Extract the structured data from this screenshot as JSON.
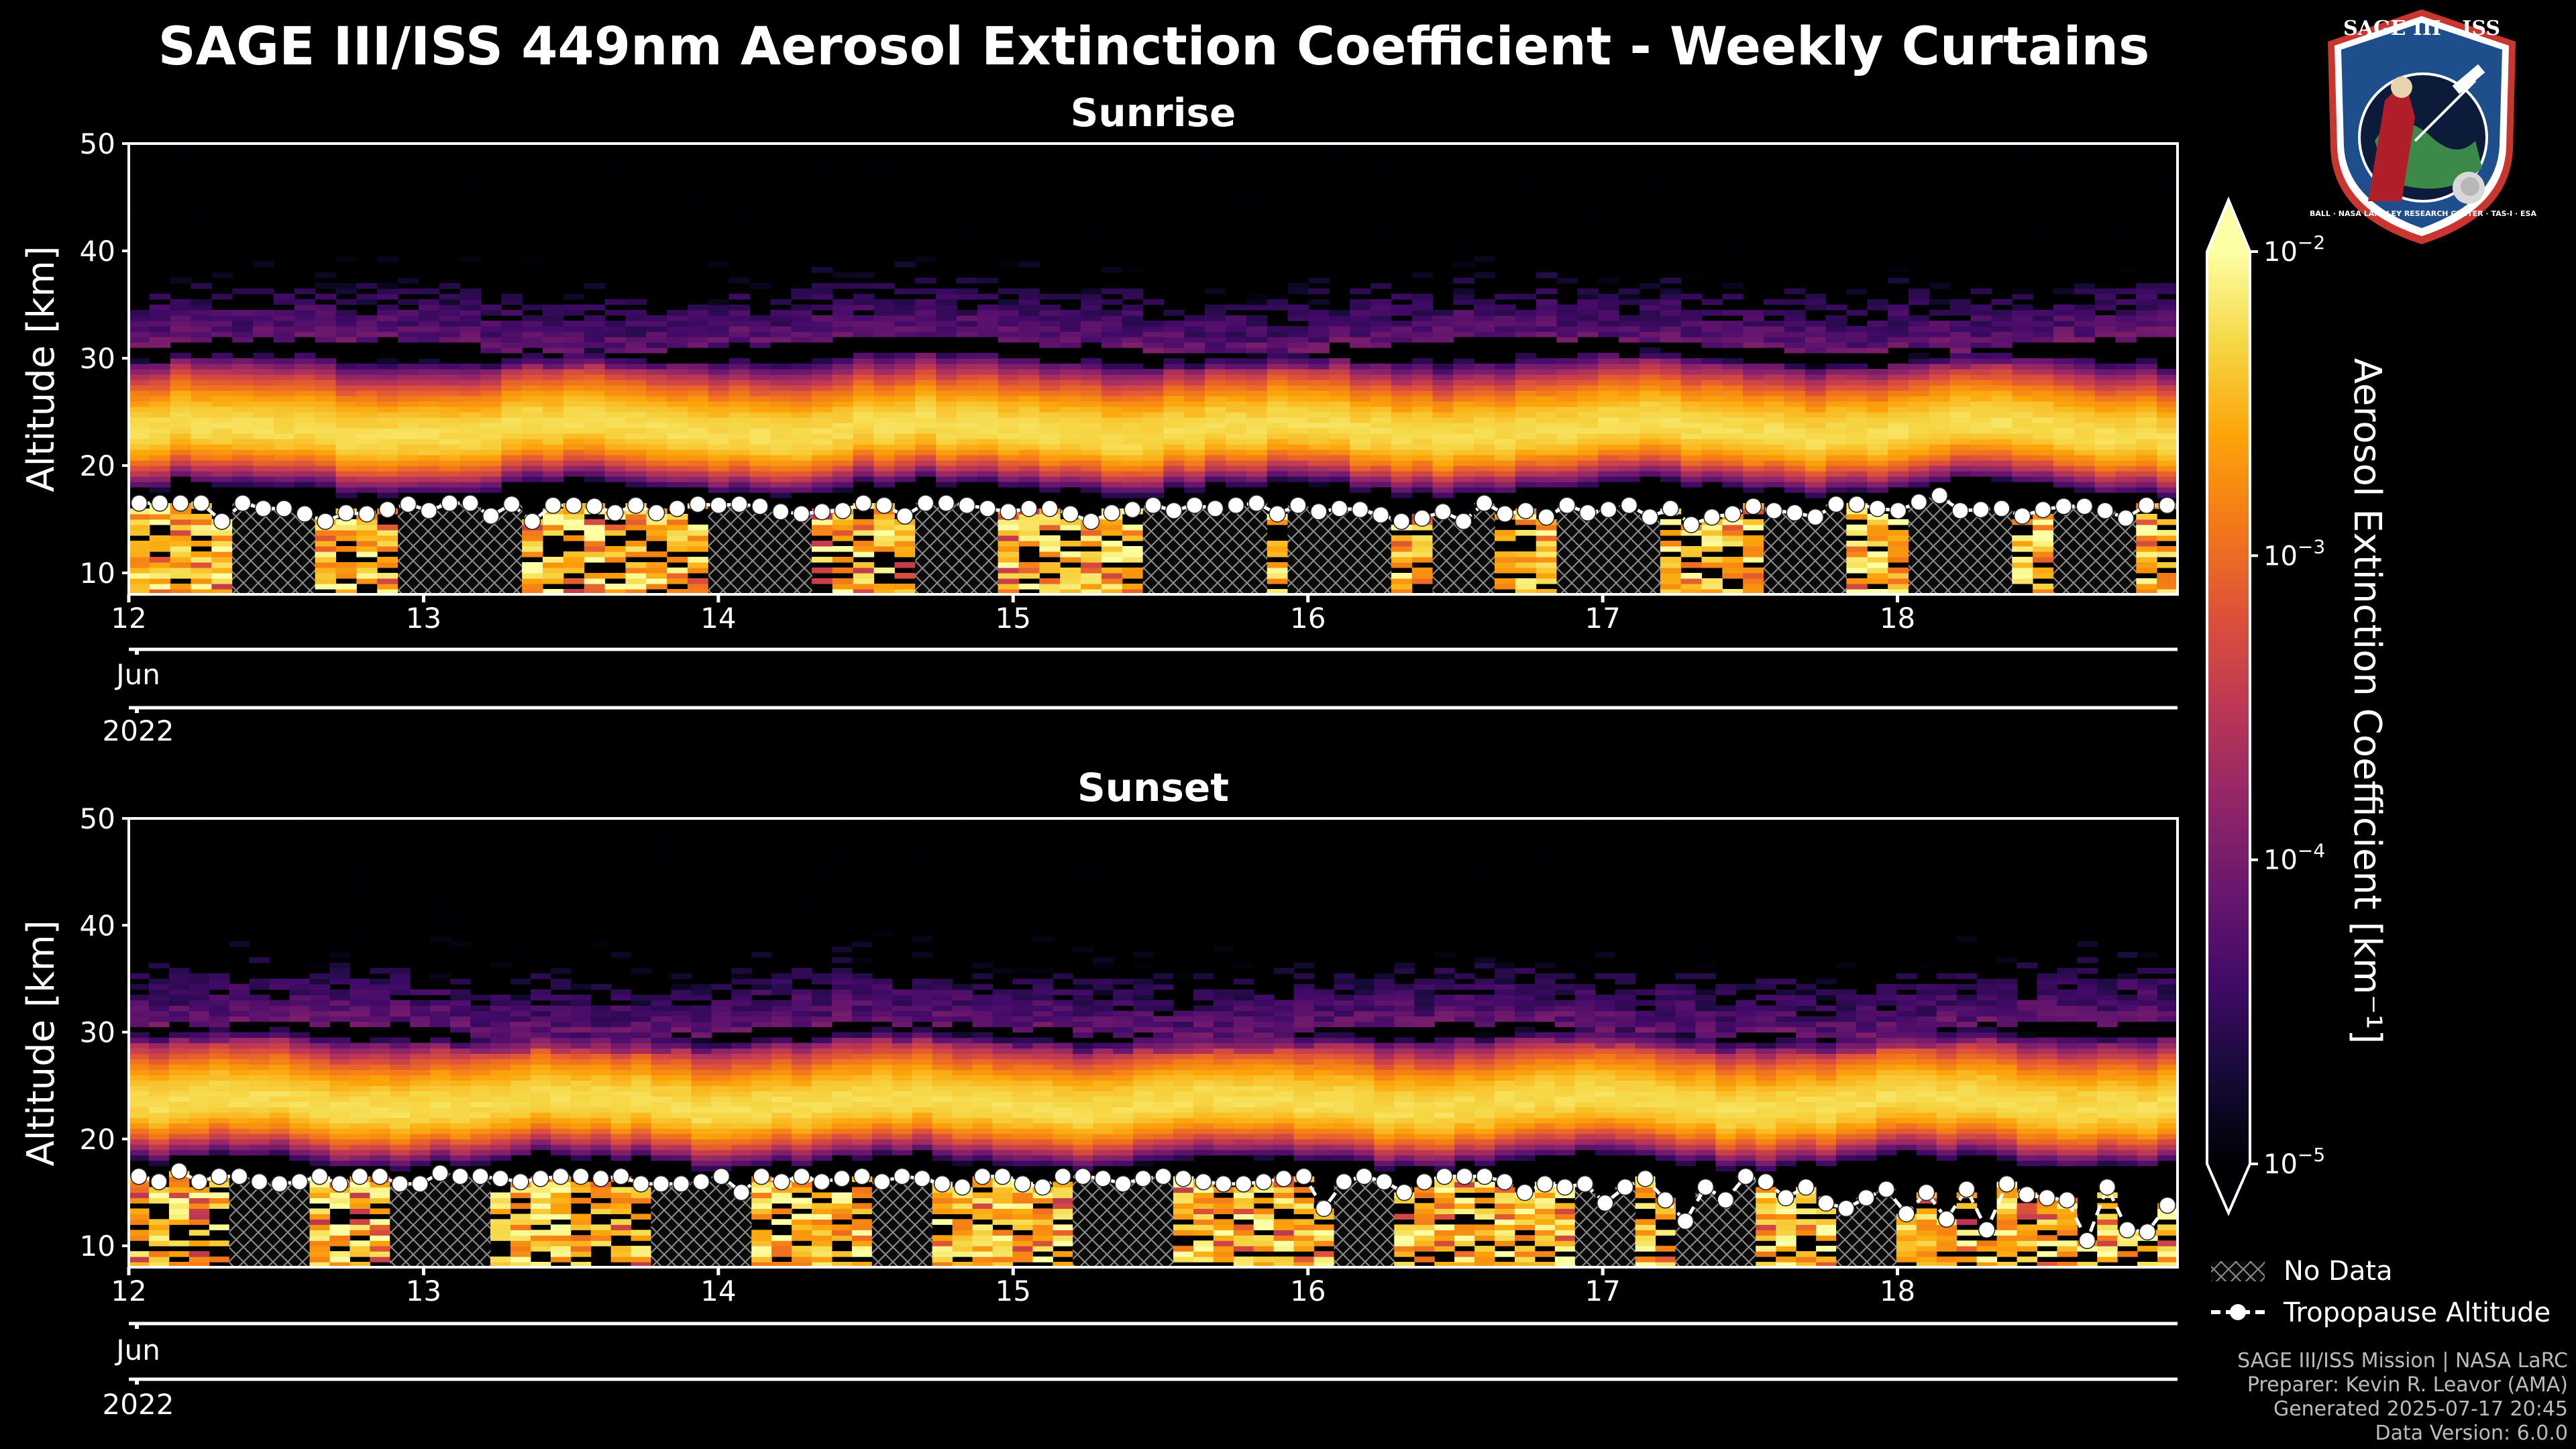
{
  "figure": {
    "title": "SAGE III/ISS 449nm Aerosol Extinction Coefficient - Weekly Curtains"
  },
  "chart_data": [
    {
      "type": "heatmap",
      "title": "Sunrise",
      "ylabel": "Altitude [km]",
      "ylim": [
        8,
        50
      ],
      "yticks": [
        "10",
        "20",
        "30",
        "40",
        "50"
      ],
      "xlim": [
        12.0,
        18.95
      ],
      "xticks": [
        {
          "value": 12,
          "label": "12"
        },
        {
          "value": 13,
          "label": "13"
        },
        {
          "value": 14,
          "label": "14"
        },
        {
          "value": 15,
          "label": "15"
        },
        {
          "value": 16,
          "label": "16"
        },
        {
          "value": 17,
          "label": "17"
        },
        {
          "value": 18,
          "label": "18"
        }
      ],
      "month_label": "Jun",
      "year_label": "2022",
      "aerosol_layer": {
        "peak_altitude_km": 23,
        "top_altitude_km": 31,
        "peak_extinction_km-1": 0.008
      },
      "tropopause_altitude_km": [
        16.5,
        16.5,
        16.5,
        16.5,
        14.8,
        16.5,
        16,
        16,
        15.5,
        14.8,
        15.6,
        15.5,
        15.9,
        16.4,
        15.8,
        16.5,
        16.5,
        15.3,
        16.4,
        14.8,
        16.3,
        16.3,
        16.2,
        15.6,
        16.3,
        15.6,
        16,
        16.4,
        16.3,
        16.4,
        16.2,
        15.7,
        15.5,
        15.7,
        15.8,
        16.5,
        16.3,
        15.3,
        16.5,
        16.5,
        16.3,
        16,
        15.7,
        16,
        16,
        15.5,
        14.8,
        15.6,
        15.9,
        16.3,
        15.8,
        16.3,
        16,
        16.3,
        16.5,
        15.5,
        16.3,
        15.7,
        16,
        15.9,
        15.4,
        14.8,
        15.1,
        15.7,
        14.8,
        16.5,
        15.5,
        15.8,
        15.2,
        16.3,
        15.6,
        15.9,
        16.3,
        15.2,
        16,
        14.5,
        15.2,
        15.5,
        16.2,
        15.8,
        15.6,
        15.2,
        16.4,
        16.4,
        16,
        15.8,
        16.6,
        17.2,
        15.8,
        15.9,
        16,
        15.3,
        15.9,
        16.2,
        16.2,
        15.8,
        15.1,
        16.3,
        16.3
      ]
    },
    {
      "type": "heatmap",
      "title": "Sunset",
      "ylabel": "Altitude [km]",
      "ylim": [
        8,
        50
      ],
      "yticks": [
        "10",
        "20",
        "30",
        "40",
        "50"
      ],
      "xlim": [
        12.0,
        18.95
      ],
      "xticks": [
        {
          "value": 12,
          "label": "12"
        },
        {
          "value": 13,
          "label": "13"
        },
        {
          "value": 14,
          "label": "14"
        },
        {
          "value": 15,
          "label": "15"
        },
        {
          "value": 16,
          "label": "16"
        },
        {
          "value": 17,
          "label": "17"
        },
        {
          "value": 18,
          "label": "18"
        }
      ],
      "month_label": "Jun",
      "year_label": "2022",
      "aerosol_layer": {
        "peak_altitude_km": 23,
        "top_altitude_km": 30,
        "peak_extinction_km-1": 0.008
      },
      "tropopause_altitude_km": [
        16.5,
        16,
        17,
        16,
        16.5,
        16.5,
        16,
        15.8,
        16,
        16.5,
        15.8,
        16.5,
        16.5,
        15.8,
        15.8,
        16.8,
        16.5,
        16.5,
        16.3,
        16,
        16.3,
        16.5,
        16.5,
        16.3,
        16.5,
        15.8,
        15.8,
        15.8,
        16,
        16.5,
        15,
        16.5,
        16,
        16.5,
        16,
        16.3,
        16.5,
        16,
        16.5,
        16.3,
        15.8,
        15.5,
        16.5,
        16.5,
        15.8,
        15.5,
        16.5,
        16.5,
        16.3,
        15.8,
        16.3,
        16.5,
        16.3,
        16,
        15.8,
        15.8,
        16,
        16.3,
        16.5,
        13.5,
        16,
        16.5,
        16,
        15,
        16,
        16.5,
        16.5,
        16.5,
        16,
        15,
        15.8,
        15.5,
        15.8,
        14,
        15.5,
        16.3,
        14.3,
        12.3,
        15.5,
        14.3,
        16.5,
        16,
        14.5,
        15.5,
        14,
        13.5,
        14.5,
        15.3,
        13,
        15,
        12.5,
        15.3,
        11.5,
        15.8,
        14.8,
        14.5,
        14.3,
        10.5,
        15.5,
        11.5,
        11.3,
        13.8
      ]
    }
  ],
  "colorbar": {
    "label": "Aerosol Extinction Coefficient [km⁻¹]",
    "scale": "log",
    "range": [
      1e-05,
      0.01
    ],
    "colormap": "inferno",
    "ticks": [
      {
        "exp": "-2",
        "value": 0.01
      },
      {
        "exp": "-3",
        "value": 0.001
      },
      {
        "exp": "-4",
        "value": 0.0001
      },
      {
        "exp": "-5",
        "value": 1e-05
      }
    ]
  },
  "legend": {
    "no_data": "No Data",
    "tropopause": "Tropopause Altitude"
  },
  "footer": {
    "line1": "SAGE III/ISS Mission | NASA LaRC",
    "line2": "Preparer: Kevin R. Leavor (AMA)",
    "line3": "Generated 2025-07-17 20:45",
    "line4": "Data Version: 6.0.0"
  },
  "logo": {
    "text": "SAGE III · ISS",
    "ring_text": "BALL · NASA LANGLEY RESEARCH CENTER · TAS-I · ESA"
  },
  "colors": {
    "background": "#000000",
    "text": "#ffffff",
    "footer_text": "#bbbbbb",
    "logo_blue": "#1e4f8c",
    "logo_red": "#c8362f"
  }
}
